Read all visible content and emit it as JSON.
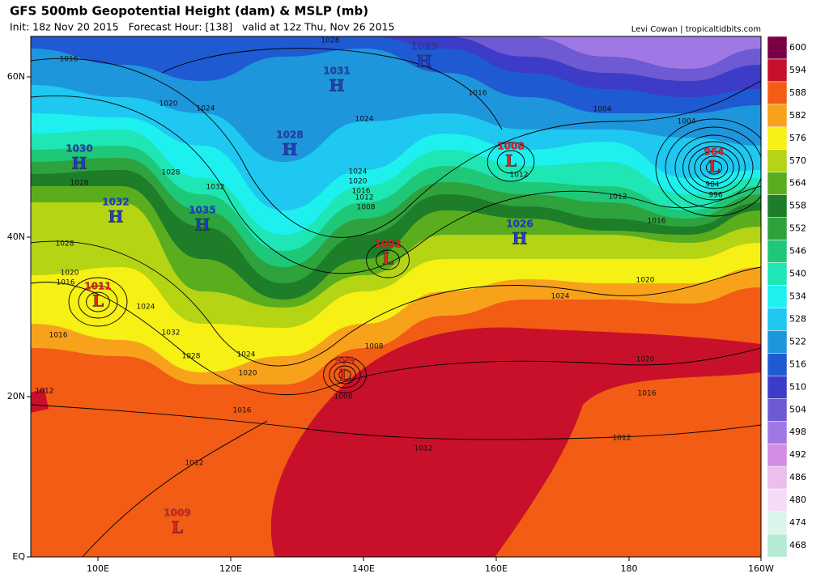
{
  "header": {
    "title": "GFS 500mb Geopotential Height (dam) & MSLP (mb)",
    "subtitle": "Init: 18z Nov 20 2015   Forecast Hour: [138]   valid at 12z Thu, Nov 26 2015",
    "credit": "Levi Cowan | tropicaltidbits.com"
  },
  "axes": {
    "lat_labels": [
      "60N",
      "40N",
      "20N",
      "EQ"
    ],
    "lon_labels": [
      "100E",
      "120E",
      "140E",
      "160E",
      "180",
      "160W"
    ]
  },
  "colorbar": {
    "levels": [
      {
        "value": 600,
        "color": "#7a0045"
      },
      {
        "value": 594,
        "color": "#c8102a"
      },
      {
        "value": 588,
        "color": "#f25c14"
      },
      {
        "value": 582,
        "color": "#f8a21c"
      },
      {
        "value": 576,
        "color": "#f6f014"
      },
      {
        "value": 570,
        "color": "#b4d414"
      },
      {
        "value": 564,
        "color": "#5aae1e"
      },
      {
        "value": 558,
        "color": "#1e7d28"
      },
      {
        "value": 552,
        "color": "#2ea23c"
      },
      {
        "value": 546,
        "color": "#1ec878"
      },
      {
        "value": 540,
        "color": "#1ee6b4"
      },
      {
        "value": 534,
        "color": "#1ef0f0"
      },
      {
        "value": 528,
        "color": "#1ec8f0"
      },
      {
        "value": 522,
        "color": "#1e96dc"
      },
      {
        "value": 516,
        "color": "#1e5ad2"
      },
      {
        "value": 510,
        "color": "#3c3cc8"
      },
      {
        "value": 504,
        "color": "#6e5ad2"
      },
      {
        "value": 498,
        "color": "#a078e6"
      },
      {
        "value": 492,
        "color": "#d28ce6"
      },
      {
        "value": 486,
        "color": "#ebbeeb"
      },
      {
        "value": 480,
        "color": "#f5dcf5"
      },
      {
        "value": 474,
        "color": "#dcf5eb"
      },
      {
        "value": 468,
        "color": "#b4ebd2"
      }
    ]
  },
  "systems": [
    {
      "letter": "H",
      "pressure": 1023
    },
    {
      "letter": "H",
      "pressure": 1031
    },
    {
      "letter": "H",
      "pressure": 1028
    },
    {
      "letter": "H",
      "pressure": 1030
    },
    {
      "letter": "H",
      "pressure": 1032
    },
    {
      "letter": "H",
      "pressure": 1035
    },
    {
      "letter": "L",
      "pressure": 1008
    },
    {
      "letter": "L",
      "pressure": 964
    },
    {
      "letter": "H",
      "pressure": 1026
    },
    {
      "letter": "L",
      "pressure": 1002
    },
    {
      "letter": "L",
      "pressure": 1011
    },
    {
      "letter": "L",
      "pressure": 999
    },
    {
      "letter": "L",
      "pressure": 1009
    }
  ],
  "contour_labels": [
    1016,
    1028,
    1020,
    1024,
    1016,
    1004,
    1004,
    1024,
    1028,
    1028,
    1032,
    1024,
    1020,
    1016,
    1012,
    1008,
    1012,
    1012,
    1016,
    1028,
    1020,
    1016,
    1024,
    1016,
    1032,
    1028,
    1024,
    1020,
    1008,
    1008,
    1012,
    1016,
    1020,
    1024,
    1020,
    1016,
    1012,
    1012,
    1012,
    984,
    996
  ]
}
